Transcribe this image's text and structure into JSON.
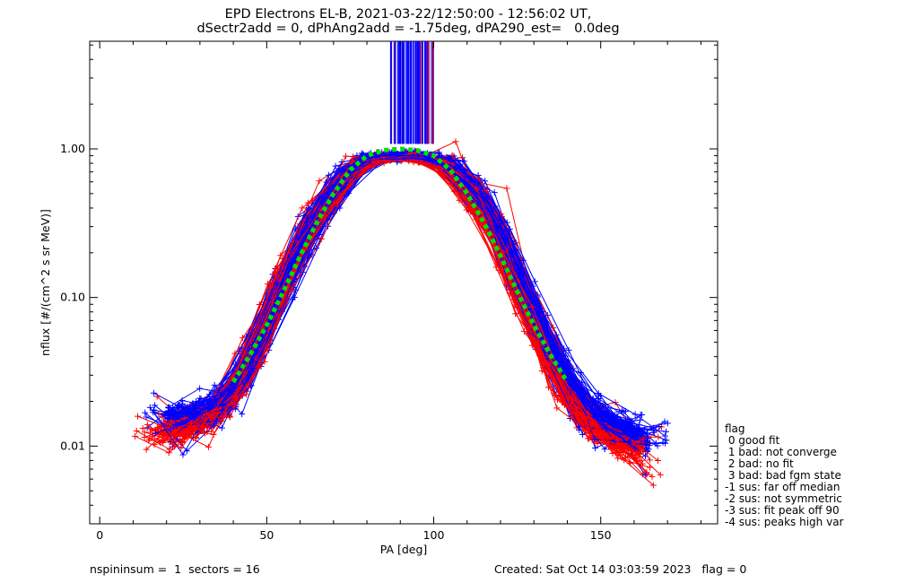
{
  "title": {
    "line1": "EPD Electrons EL-B, 2021-03-22/12:50:00 - 12:56:02 UT,",
    "line2": "dSectr2add = 0, dPhAng2add = -1.75deg, dPA290_est=   0.0deg"
  },
  "legend": {
    "header": "flag",
    "items": [
      " 0 good fit",
      " 1 bad: not converge",
      " 2 bad: no fit",
      " 3 bad: bad fgm state",
      "-1 sus: far off median",
      "-2 sus: not symmetric",
      "-3 sus: fit peak off 90",
      "-4 sus: peaks high var"
    ]
  },
  "footer": {
    "left": "nspininsum =  1  sectors = 16",
    "right": "Created: Sat Oct 14 03:03:59 2023   flag = 0"
  },
  "colors": {
    "series_red": "#ff0000",
    "series_blue": "#0000ff",
    "fit": "#00e000",
    "axis": "#000000"
  },
  "chart_data": {
    "type": "line",
    "xlabel": "PA [deg]",
    "ylabel": "nflux [#/(cm^2 s sr MeV)]",
    "xlim": [
      -3,
      185
    ],
    "ylim": [
      0.003,
      5.3
    ],
    "yscale": "log",
    "xticks": [
      0,
      50,
      100,
      150
    ],
    "yticks": [
      {
        "value": 0.01,
        "label": "0.01"
      },
      {
        "value": 0.1,
        "label": "0.10"
      },
      {
        "value": 1.0,
        "label": "1.00"
      }
    ],
    "grid": false,
    "series": [
      {
        "color": "red",
        "x": [
          18,
          25,
          33,
          40,
          47,
          55,
          62,
          70,
          78,
          86,
          94,
          102,
          110,
          118,
          125,
          133,
          140,
          148,
          155,
          162
        ],
        "y": [
          0.012,
          0.014,
          0.015,
          0.022,
          0.045,
          0.13,
          0.28,
          0.52,
          0.82,
          0.88,
          0.88,
          0.82,
          0.55,
          0.3,
          0.12,
          0.045,
          0.02,
          0.013,
          0.011,
          0.009
        ]
      },
      {
        "color": "blue",
        "x": [
          21,
          27,
          34,
          41,
          48,
          56,
          63,
          71,
          79,
          87,
          95,
          103,
          111,
          119,
          126,
          134,
          141,
          149,
          156,
          163
        ],
        "y": [
          0.016,
          0.015,
          0.017,
          0.024,
          0.05,
          0.14,
          0.3,
          0.56,
          0.86,
          0.9,
          0.9,
          0.84,
          0.57,
          0.31,
          0.13,
          0.05,
          0.024,
          0.016,
          0.013,
          0.011
        ]
      },
      {
        "color": "green-dotted-fit",
        "x": [
          40,
          45,
          50,
          55,
          60,
          65,
          70,
          75,
          80,
          85,
          90,
          95,
          100,
          105,
          110,
          115,
          120,
          125,
          130,
          135,
          140
        ],
        "y": [
          0.027,
          0.041,
          0.065,
          0.11,
          0.19,
          0.32,
          0.5,
          0.72,
          0.9,
          0.98,
          1.0,
          0.98,
          0.9,
          0.72,
          0.5,
          0.32,
          0.19,
          0.11,
          0.065,
          0.041,
          0.027
        ]
      }
    ]
  }
}
